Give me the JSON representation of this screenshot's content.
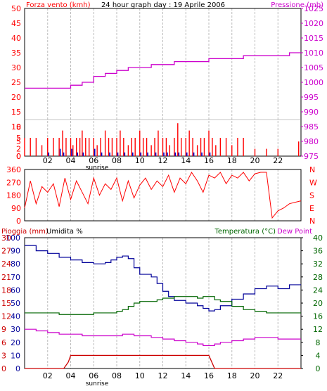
{
  "title": "24 hour graph day : 19 Aprile 2006",
  "colors": {
    "wind": "#ff0000",
    "gust": "#0000cc",
    "pressure": "#cc00cc",
    "direction": "#ff0000",
    "rain": "#cc0000",
    "humidity": "#000099",
    "temperature": "#006600",
    "dewpoint": "#cc00cc",
    "grid": "#bbbbbb",
    "axis": "#000000"
  },
  "chart_data": [
    {
      "type": "bar",
      "name": "wind-pressure",
      "left_label": "Forza vento (kmh)",
      "right_label": "Pressione (mb)",
      "x_ticks": [
        "02",
        "04",
        "06",
        "08",
        "10",
        "12",
        "14",
        "16",
        "18",
        "20",
        "22"
      ],
      "x_extra_label": "sunrise",
      "left_ticks": [
        0,
        5,
        10,
        15,
        20,
        25,
        30,
        35,
        40,
        45,
        50
      ],
      "left_ticks_zoom": [
        0,
        2,
        5,
        8
      ],
      "right_ticks": [
        975,
        980,
        985,
        990,
        995,
        1000,
        1005,
        1010,
        1015,
        1020,
        1025
      ],
      "xlim": [
        0,
        24
      ],
      "ylim_left": [
        0,
        50
      ],
      "ylim_right": [
        975,
        1025
      ],
      "pressure": {
        "x": [
          0,
          2,
          3.5,
          4,
          5,
          6,
          7,
          8,
          9,
          10,
          11,
          12,
          13,
          14,
          15,
          16,
          17,
          18,
          19,
          20,
          21,
          22,
          23,
          24
        ],
        "y": [
          998,
          998,
          998,
          999,
          1000,
          1002,
          1003,
          1004,
          1005,
          1005,
          1006,
          1006,
          1007,
          1007,
          1007,
          1008,
          1008,
          1008,
          1009,
          1009,
          1009,
          1009,
          1010,
          1010
        ]
      },
      "wind_hours": [
        0,
        0.5,
        1,
        1.5,
        2,
        2.5,
        3,
        3.3,
        3.6,
        4,
        4.2,
        4.5,
        4.8,
        5,
        5.3,
        5.6,
        6,
        6.3,
        6.6,
        7,
        7.3,
        7.6,
        8,
        8.3,
        8.6,
        9,
        9.3,
        9.6,
        10,
        10.3,
        10.6,
        11,
        11.3,
        11.6,
        12,
        12.3,
        12.6,
        13,
        13.3,
        13.6,
        14,
        14.3,
        14.6,
        15,
        15.3,
        15.6,
        16,
        16.3,
        16.6,
        17,
        17.5,
        18,
        18.5,
        19,
        20,
        21,
        22,
        23.8
      ],
      "wind_values": [
        5,
        5,
        5,
        3,
        5,
        5,
        5,
        7,
        5,
        5,
        3,
        5,
        5,
        7,
        5,
        5,
        5,
        3,
        5,
        7,
        5,
        5,
        5,
        7,
        5,
        3,
        5,
        5,
        7,
        5,
        5,
        3,
        5,
        7,
        5,
        5,
        3,
        5,
        9,
        5,
        5,
        7,
        5,
        3,
        5,
        5,
        7,
        5,
        3,
        5,
        5,
        3,
        5,
        5,
        2,
        2,
        2,
        4
      ],
      "gust_values": [
        0,
        0,
        0,
        0,
        1,
        0,
        2,
        1,
        0,
        2,
        0,
        1,
        0,
        1,
        0,
        0,
        2,
        0,
        1,
        0,
        1,
        0,
        1,
        0,
        1,
        0,
        1,
        0,
        1,
        0,
        1,
        0,
        1,
        0,
        1,
        1,
        0,
        1,
        1,
        0,
        1,
        0,
        1,
        0,
        1,
        0,
        1,
        0,
        0,
        0,
        0,
        0,
        0,
        0,
        0,
        0,
        0,
        0
      ]
    },
    {
      "type": "line",
      "name": "wind-direction",
      "left_ticks": [
        0,
        90,
        180,
        270,
        360
      ],
      "right_labels": [
        "N",
        "W",
        "S",
        "E",
        "N"
      ],
      "ylim": [
        0,
        360
      ],
      "x": [
        0,
        0.5,
        1,
        1.5,
        2,
        2.5,
        3,
        3.5,
        4,
        4.5,
        5,
        5.5,
        6,
        6.5,
        7,
        7.5,
        8,
        8.5,
        9,
        9.5,
        10,
        10.5,
        11,
        11.5,
        12,
        12.5,
        13,
        13.5,
        14,
        14.5,
        15,
        15.5,
        16,
        16.5,
        17,
        17.5,
        18,
        18.5,
        19,
        19.5,
        20,
        20.5,
        21,
        21.5,
        22,
        22.5,
        23,
        23.5,
        24
      ],
      "y": [
        90,
        280,
        120,
        240,
        200,
        260,
        100,
        300,
        150,
        280,
        200,
        120,
        300,
        180,
        260,
        220,
        300,
        140,
        280,
        160,
        250,
        300,
        220,
        280,
        240,
        320,
        200,
        300,
        260,
        340,
        280,
        200,
        320,
        300,
        340,
        260,
        320,
        300,
        340,
        280,
        330,
        340,
        340,
        20,
        70,
        90,
        120,
        130,
        140
      ]
    },
    {
      "type": "line",
      "name": "rain-humidity-temperature",
      "left_label_rain": "Pioggia (mm)",
      "left_label_humidity": "Umidita %",
      "right_label_temp": "Temperatura (°C)",
      "right_label_dew": "Dew Point",
      "rain_ticks": [
        0,
        3,
        6,
        9,
        12,
        15,
        18,
        21,
        24,
        27,
        30
      ],
      "humidity_ticks": [
        0,
        10,
        20,
        30,
        40,
        50,
        60,
        70,
        80,
        90,
        100
      ],
      "temp_ticks": [
        0,
        4,
        8,
        12,
        16,
        20,
        24,
        28,
        32,
        36,
        40
      ],
      "ylim_humidity": [
        0,
        100
      ],
      "ylim_temp": [
        0,
        40
      ],
      "x": [
        0,
        1,
        2,
        3,
        4,
        5,
        6,
        7,
        7.5,
        8,
        8.5,
        9,
        9.5,
        10,
        11,
        11.5,
        12,
        12.5,
        13,
        14,
        15,
        15.5,
        16,
        16.5,
        17,
        18,
        19,
        20,
        21,
        22,
        23,
        24
      ],
      "humidity": [
        94,
        90,
        88,
        85,
        83,
        81,
        80,
        81,
        83,
        85,
        86,
        84,
        77,
        72,
        70,
        65,
        59,
        55,
        52,
        50,
        48,
        46,
        44,
        45,
        48,
        53,
        57,
        61,
        63,
        61,
        64,
        64
      ],
      "temperature": [
        17,
        17,
        17,
        16.5,
        16.5,
        16.5,
        17,
        17,
        17,
        17.5,
        18,
        19,
        20,
        20.5,
        20.5,
        21,
        21.5,
        21.5,
        22,
        22,
        21.5,
        22,
        22,
        21,
        20.5,
        19,
        18,
        17.5,
        17,
        17,
        17,
        17
      ],
      "dewpoint": [
        12,
        11.5,
        11,
        10.5,
        10.5,
        10,
        10,
        10,
        10,
        10,
        10.5,
        10.5,
        10,
        10,
        9.5,
        9.5,
        9,
        9,
        8.5,
        8,
        7.5,
        7,
        7,
        7.5,
        8,
        8.5,
        9,
        9.5,
        9.5,
        9,
        9,
        9
      ],
      "rain": {
        "x": [
          0,
          3.2,
          3.4,
          3.8,
          4.0,
          16.0,
          16.5,
          24
        ],
        "y": [
          0,
          0,
          0,
          1.5,
          3,
          3,
          0,
          0
        ]
      }
    }
  ]
}
